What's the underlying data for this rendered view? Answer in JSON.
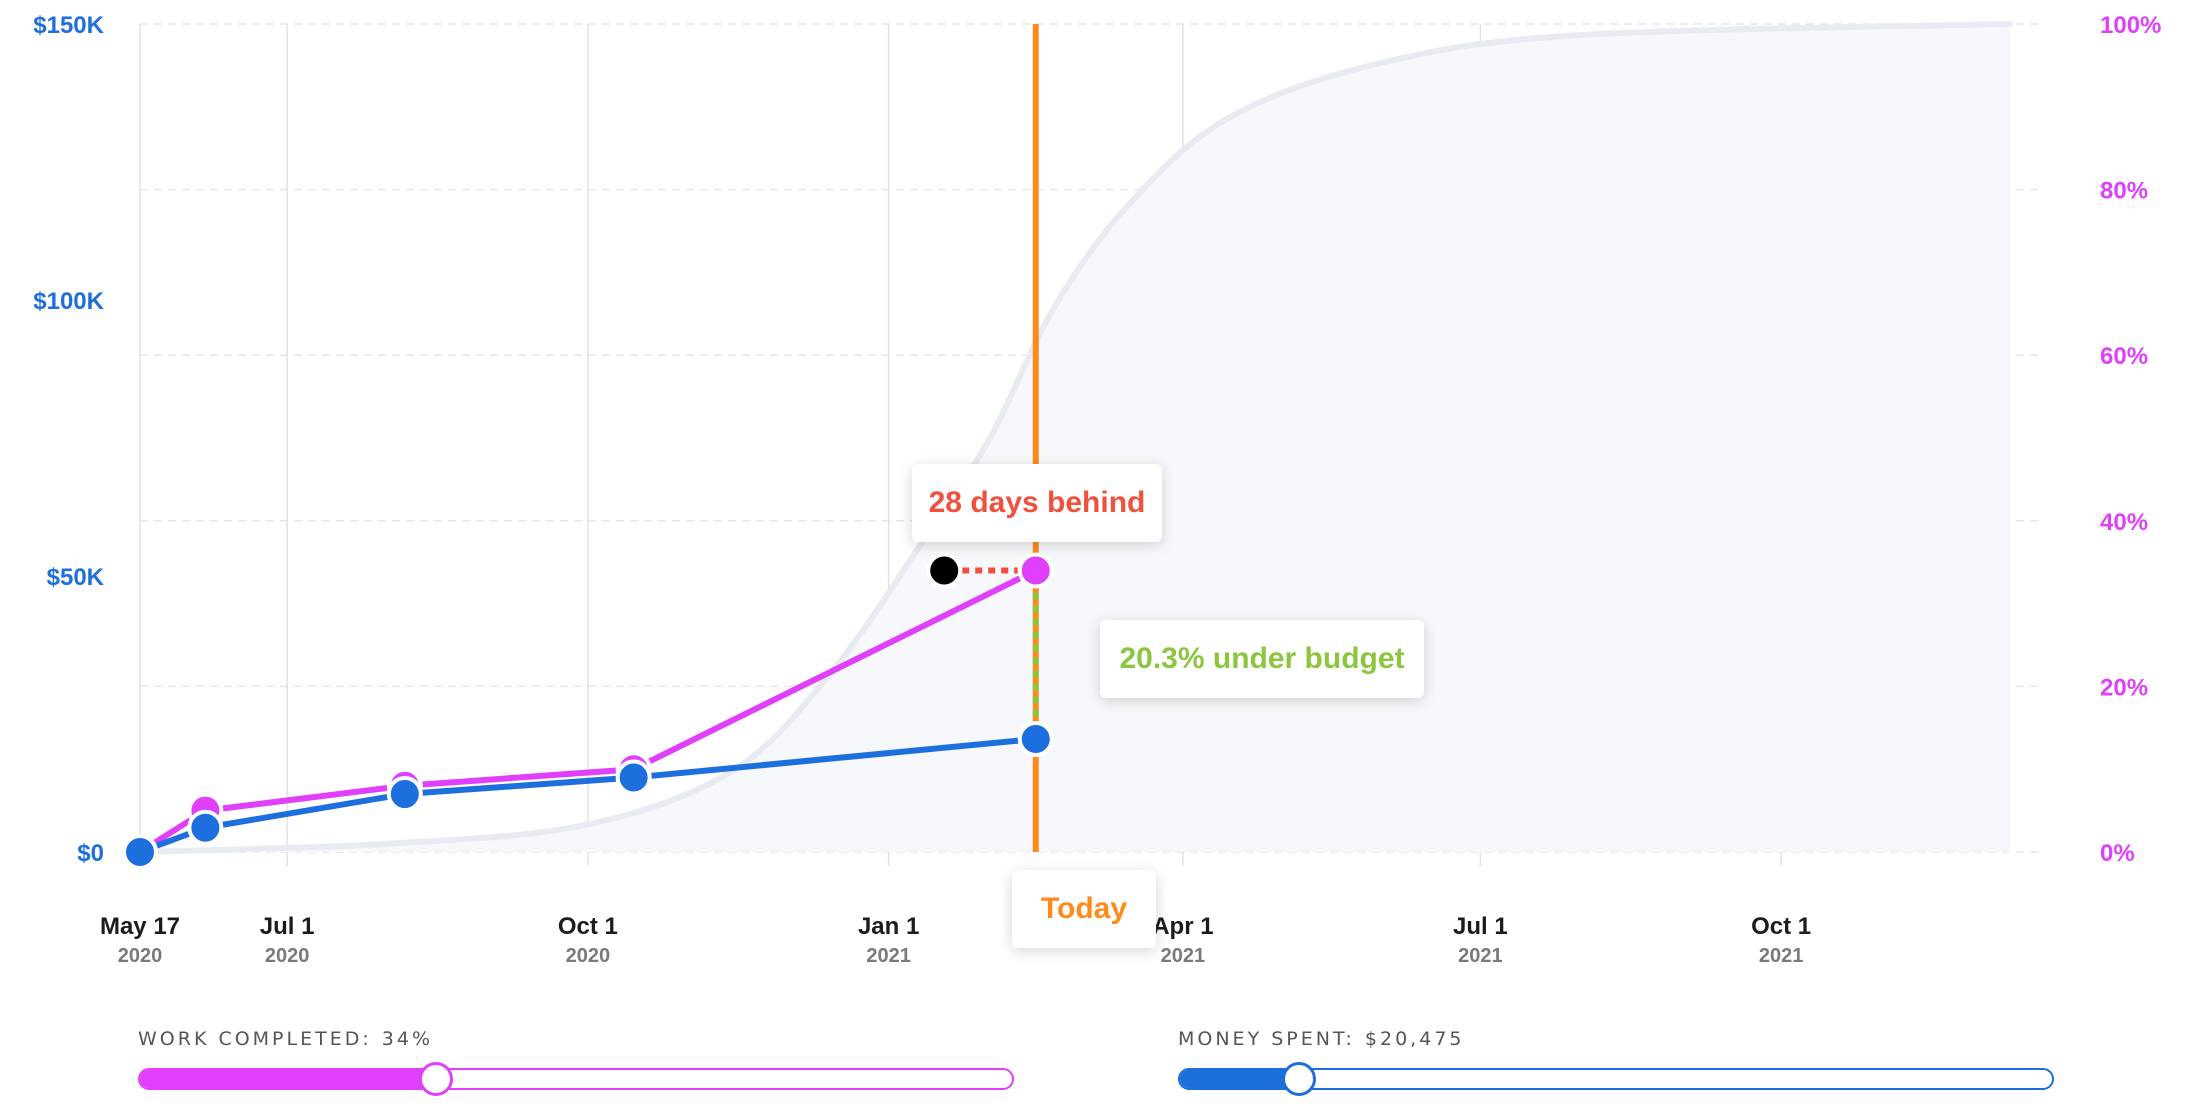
{
  "chart_data": {
    "type": "line",
    "x_axis": {
      "ticks": [
        {
          "date": "2020-05-17",
          "label": "May 17",
          "sub": "2020"
        },
        {
          "date": "2020-07-01",
          "label": "Jul 1",
          "sub": "2020"
        },
        {
          "date": "2020-10-01",
          "label": "Oct 1",
          "sub": "2020"
        },
        {
          "date": "2021-01-01",
          "label": "Jan 1",
          "sub": "2021"
        },
        {
          "date": "2021-04-01",
          "label": "Apr 1",
          "sub": "2021"
        },
        {
          "date": "2021-07-01",
          "label": "Jul 1",
          "sub": "2021"
        },
        {
          "date": "2021-10-01",
          "label": "Oct 1",
          "sub": "2021"
        }
      ],
      "range": [
        "2020-05-17",
        "2021-12-10"
      ]
    },
    "y_left": {
      "ticks": [
        {
          "value": 0,
          "label": "$0"
        },
        {
          "value": 50000,
          "label": "$50K"
        },
        {
          "value": 100000,
          "label": "$100K"
        },
        {
          "value": 150000,
          "label": "$150K"
        }
      ],
      "range": [
        0,
        150000
      ],
      "color": "#1e6fde"
    },
    "y_right": {
      "ticks": [
        {
          "value": 0,
          "label": "0%"
        },
        {
          "value": 20,
          "label": "20%"
        },
        {
          "value": 40,
          "label": "40%"
        },
        {
          "value": 60,
          "label": "60%"
        },
        {
          "value": 80,
          "label": "80%"
        },
        {
          "value": 100,
          "label": "100%"
        }
      ],
      "range": [
        0,
        100
      ],
      "color": "#e040fb"
    },
    "grid": true,
    "series": [
      {
        "kind": "planned-budget-curve",
        "axis": "left",
        "color": "#e8ecf2",
        "points": [
          {
            "x": "2020-05-17",
            "y": 0
          },
          {
            "x": "2020-08-01",
            "y": 1500
          },
          {
            "x": "2020-10-01",
            "y": 5000
          },
          {
            "x": "2020-11-15",
            "y": 15000
          },
          {
            "x": "2020-12-15",
            "y": 33000
          },
          {
            "x": "2021-01-10",
            "y": 55000
          },
          {
            "x": "2021-02-01",
            "y": 75000
          },
          {
            "x": "2021-02-20",
            "y": 98000
          },
          {
            "x": "2021-03-15",
            "y": 117000
          },
          {
            "x": "2021-04-15",
            "y": 133000
          },
          {
            "x": "2021-06-01",
            "y": 143000
          },
          {
            "x": "2021-08-01",
            "y": 148000
          },
          {
            "x": "2021-12-10",
            "y": 150000
          }
        ]
      },
      {
        "kind": "work-completed",
        "axis": "right",
        "color": "#e040fb",
        "points": [
          {
            "x": "2020-05-17",
            "y": 0
          },
          {
            "x": "2020-06-06",
            "y": 5
          },
          {
            "x": "2020-08-06",
            "y": 8
          },
          {
            "x": "2020-10-15",
            "y": 10
          },
          {
            "x": "2021-02-15",
            "y": 34
          }
        ]
      },
      {
        "kind": "money-spent",
        "axis": "left",
        "color": "#1e6fde",
        "points": [
          {
            "x": "2020-05-17",
            "y": 0
          },
          {
            "x": "2020-06-06",
            "y": 4400
          },
          {
            "x": "2020-08-06",
            "y": 10500
          },
          {
            "x": "2020-10-15",
            "y": 13500
          },
          {
            "x": "2021-02-15",
            "y": 20475
          }
        ]
      }
    ],
    "planned_point": {
      "x": "2021-01-18",
      "y": 34,
      "axis": "right",
      "color": "#000000"
    },
    "today": {
      "x": "2021-02-15",
      "label": "Today",
      "color": "#ff8a1c"
    },
    "annotations": [
      {
        "id": "schedule",
        "text": "28 days behind",
        "color": "#f0503c"
      },
      {
        "id": "budget",
        "text": "20.3% under budget",
        "color": "#8cc63f"
      }
    ]
  },
  "controls": {
    "work": {
      "label": "WORK COMPLETED:",
      "value_text": "34%",
      "fraction": 0.34,
      "color": "#e040fb"
    },
    "money": {
      "label": "MONEY SPENT:",
      "value_text": "$20,475",
      "fraction": 0.136,
      "color": "#1e6fde"
    }
  }
}
